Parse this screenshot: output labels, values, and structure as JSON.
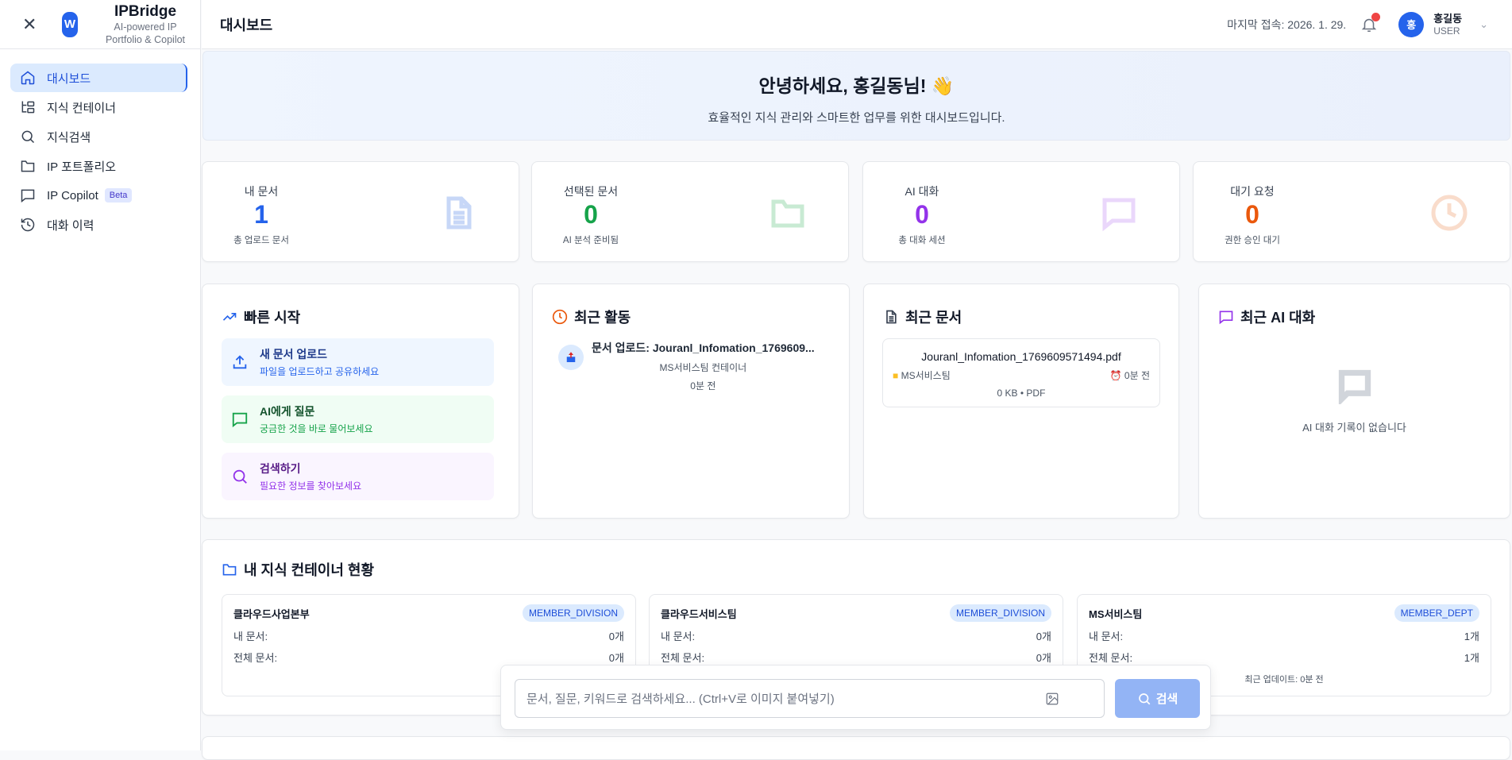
{
  "sidebar": {
    "brand": "IPBridge",
    "logo_letter": "W",
    "tagline1": "AI-powered IP",
    "tagline2": "Portfolio & Copilot",
    "items": [
      {
        "label": "대시보드",
        "icon": "home-icon",
        "active": true
      },
      {
        "label": "지식 컨테이너",
        "icon": "hierarchy-icon"
      },
      {
        "label": "지식검색",
        "icon": "search-icon"
      },
      {
        "label": "IP 포트폴리오",
        "icon": "folder-icon"
      },
      {
        "label": "IP Copilot",
        "icon": "chat-icon",
        "badge": "Beta"
      },
      {
        "label": "대화 이력",
        "icon": "history-icon"
      }
    ]
  },
  "header": {
    "title": "대시보드",
    "last_access": "마지막 접속: 2026. 1. 29.",
    "avatar": "홍",
    "user_name": "홍길동",
    "user_role": "USER"
  },
  "banner": {
    "greeting": "안녕하세요, 홍길동님! 👋",
    "subtitle": "효율적인 지식 관리와 스마트한 업무를 위한 대시보드입니다."
  },
  "stats": [
    {
      "label": "내 문서",
      "value": "1",
      "sub": "총 업로드 문서",
      "color": "#2563eb"
    },
    {
      "label": "선택된 문서",
      "value": "0",
      "sub": "AI 분석 준비됨",
      "color": "#16a34a"
    },
    {
      "label": "AI 대화",
      "value": "0",
      "sub": "총 대화 세션",
      "color": "#9333ea"
    },
    {
      "label": "대기 요청",
      "value": "0",
      "sub": "권한 승인 대기",
      "color": "#ea580c"
    }
  ],
  "quick_start": {
    "title": "빠른 시작",
    "items": [
      {
        "title": "새 문서 업로드",
        "desc": "파일을 업로드하고 공유하세요"
      },
      {
        "title": "AI에게 질문",
        "desc": "궁금한 것을 바로 물어보세요"
      },
      {
        "title": "검색하기",
        "desc": "필요한 정보를 찾아보세요"
      }
    ]
  },
  "recent_activity": {
    "title": "최근 활동",
    "items": [
      {
        "title": "문서 업로드: Jouranl_Infomation_1769609...",
        "container": "MS서비스팀 컨테이너",
        "time": "0분 전"
      }
    ]
  },
  "recent_docs": {
    "title": "최근 문서",
    "items": [
      {
        "name": "Jouranl_Infomation_1769609571494.pdf",
        "folder": "MS서비스팀",
        "time": "0분 전",
        "meta": "0 KB • PDF"
      }
    ]
  },
  "recent_ai": {
    "title": "최근 AI 대화",
    "empty": "AI 대화 기록이 없습니다"
  },
  "containers": {
    "title": "내 지식 컨테이너 현황",
    "my_docs_label": "내 문서:",
    "all_docs_label": "전체 문서:",
    "items": [
      {
        "name": "클라우드사업본부",
        "tag": "MEMBER_DIVISION",
        "my": "0개",
        "all": "0개"
      },
      {
        "name": "클라우드서비스팀",
        "tag": "MEMBER_DIVISION",
        "my": "0개",
        "all": "0개"
      },
      {
        "name": "MS서비스팀",
        "tag": "MEMBER_DEPT",
        "my": "1개",
        "all": "1개",
        "updated": "최근 업데이트: 0분 전"
      }
    ]
  },
  "search": {
    "placeholder": "문서, 질문, 키워드로 검색하세요... (Ctrl+V로 이미지 붙여넣기)",
    "button": "검색"
  }
}
